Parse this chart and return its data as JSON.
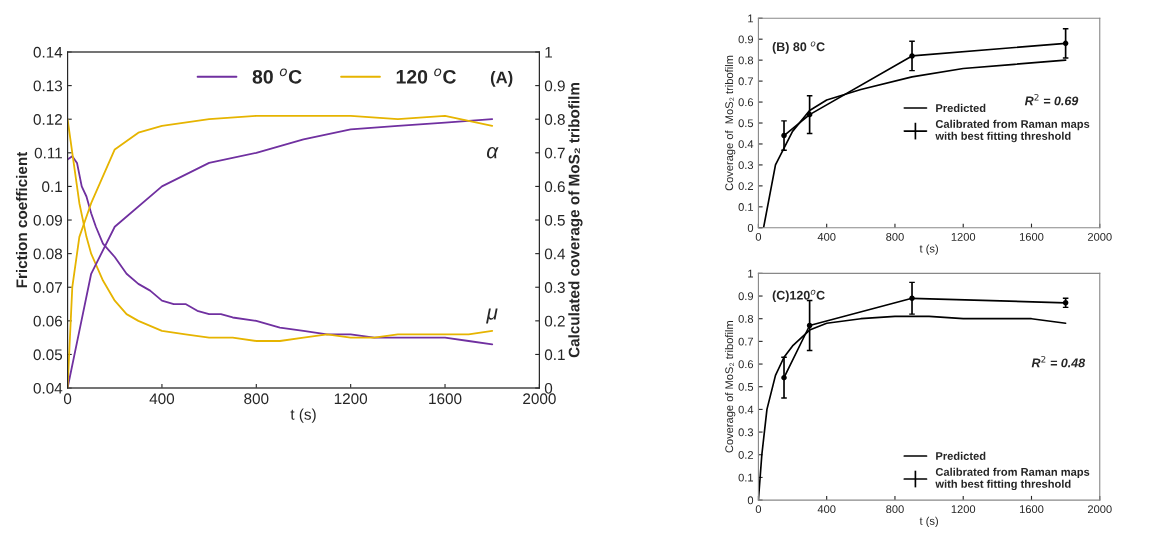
{
  "chart_data": [
    {
      "type": "line",
      "xlabel": "t (s)",
      "ylabel": "Friction coefficient",
      "y2label": "Calculated coverage of MoS₂ tribofilm",
      "xlim": [
        0,
        2000
      ],
      "xticks": [
        0,
        400,
        800,
        1200,
        1600,
        2000
      ],
      "ylim": [
        0.04,
        0.14
      ],
      "yticks": [
        0.04,
        0.05,
        0.06,
        0.07,
        0.08,
        0.09,
        0.1,
        0.11,
        0.12,
        0.13,
        0.14
      ],
      "y2lim": [
        0,
        1
      ],
      "y2ticks": [
        0,
        0.1,
        0.2,
        0.3,
        0.4,
        0.5,
        0.6,
        0.7,
        0.8,
        0.9,
        1
      ],
      "legend": "top",
      "grid": false,
      "annotations": [
        "(A)",
        "α",
        "μ"
      ],
      "series": [
        {
          "name": "80 $^{o}$C",
          "color": "#7030a0",
          "x": [
            0,
            20,
            40,
            60,
            80,
            100,
            120,
            150,
            200,
            250,
            300,
            350,
            400,
            450,
            500,
            550,
            600,
            650,
            700,
            800,
            900,
            1000,
            1100,
            1200,
            1300,
            1400,
            1500,
            1600,
            1700,
            1800
          ],
          "values": [
            0.108,
            0.109,
            0.107,
            0.1,
            0.097,
            0.092,
            0.088,
            0.083,
            0.079,
            0.074,
            0.071,
            0.069,
            0.066,
            0.065,
            0.065,
            0.063,
            0.062,
            0.062,
            0.061,
            0.06,
            0.058,
            0.057,
            0.056,
            0.056,
            0.055,
            0.055,
            0.055,
            0.055,
            0.054,
            0.053
          ]
        },
        {
          "name": "120 $^{o}$C",
          "color": "#e6b400",
          "x": [
            0,
            20,
            50,
            80,
            100,
            150,
            200,
            250,
            300,
            400,
            500,
            600,
            700,
            800,
            900,
            1000,
            1100,
            1200,
            1300,
            1400,
            1500,
            1600,
            1700,
            1800
          ],
          "values": [
            0.12,
            0.11,
            0.095,
            0.085,
            0.08,
            0.072,
            0.066,
            0.062,
            0.06,
            0.057,
            0.056,
            0.055,
            0.055,
            0.054,
            0.054,
            0.055,
            0.056,
            0.055,
            0.055,
            0.056,
            0.056,
            0.056,
            0.056,
            0.057
          ]
        },
        {
          "axis": "y2",
          "color": "#7030a0",
          "x": [
            0,
            50,
            100,
            200,
            400,
            600,
            800,
            1000,
            1200,
            1400,
            1600,
            1800
          ],
          "values": [
            0,
            0.17,
            0.34,
            0.48,
            0.6,
            0.67,
            0.7,
            0.74,
            0.77,
            0.78,
            0.79,
            0.8
          ]
        },
        {
          "axis": "y2",
          "color": "#e6b400",
          "x": [
            0,
            20,
            50,
            100,
            200,
            300,
            400,
            600,
            800,
            1000,
            1200,
            1400,
            1600,
            1800
          ],
          "values": [
            0,
            0.3,
            0.45,
            0.55,
            0.71,
            0.76,
            0.78,
            0.8,
            0.81,
            0.81,
            0.81,
            0.8,
            0.81,
            0.78
          ]
        }
      ]
    },
    {
      "type": "line",
      "xlabel": "t (s)",
      "ylabel": "Coverage of  MoS₂ tribofilm",
      "xlim": [
        0,
        2000
      ],
      "xticks": [
        0,
        400,
        800,
        1200,
        1600,
        2000
      ],
      "ylim": [
        0,
        1
      ],
      "yticks": [
        0,
        0.1,
        0.2,
        0.3,
        0.4,
        0.5,
        0.6,
        0.7,
        0.8,
        0.9,
        1
      ],
      "legend": "center right",
      "grid": false,
      "annotations": [
        "(B) 80 $^{o}$C",
        "R$^{2}$ = 0.69"
      ],
      "series": [
        {
          "name": "Predicted",
          "color": "#000000",
          "x": [
            0,
            30,
            100,
            200,
            300,
            400,
            600,
            900,
            1200,
            1500,
            1800
          ],
          "values": [
            0,
            0,
            0.3,
            0.46,
            0.56,
            0.61,
            0.66,
            0.72,
            0.76,
            0.78,
            0.8
          ]
        },
        {
          "name": "Calibrated from Raman maps\nwith best fitting threshold",
          "color": "#000000",
          "marker": "circle",
          "x": [
            150,
            300,
            900,
            1800
          ],
          "values": [
            0.44,
            0.54,
            0.82,
            0.88
          ],
          "errors": [
            0.07,
            0.09,
            0.07,
            0.07
          ]
        }
      ]
    },
    {
      "type": "line",
      "xlabel": "t (s)",
      "ylabel": "Coverage of MoS₂ tribofilm",
      "xlim": [
        0,
        2000
      ],
      "xticks": [
        0,
        400,
        800,
        1200,
        1600,
        2000
      ],
      "ylim": [
        0,
        1
      ],
      "yticks": [
        0,
        0.1,
        0.2,
        0.3,
        0.4,
        0.5,
        0.6,
        0.7,
        0.8,
        0.9,
        1
      ],
      "legend": "bottom right",
      "grid": false,
      "annotations": [
        "(C)120$^{o}$C",
        "R$^{2}$ = 0.48"
      ],
      "series": [
        {
          "name": "Predicted",
          "color": "#000000",
          "x": [
            0,
            20,
            50,
            100,
            150,
            200,
            300,
            400,
            600,
            800,
            1000,
            1200,
            1400,
            1600,
            1700,
            1800
          ],
          "values": [
            0,
            0.2,
            0.4,
            0.55,
            0.63,
            0.68,
            0.75,
            0.78,
            0.8,
            0.81,
            0.81,
            0.8,
            0.8,
            0.8,
            0.79,
            0.78
          ]
        },
        {
          "name": "Calibrated from Raman maps\nwith best fitting threshold",
          "color": "#000000",
          "marker": "circle",
          "x": [
            150,
            300,
            900,
            1800
          ],
          "values": [
            0.54,
            0.77,
            0.89,
            0.87
          ],
          "errors": [
            0.09,
            0.11,
            0.07,
            0.02
          ]
        }
      ]
    }
  ]
}
